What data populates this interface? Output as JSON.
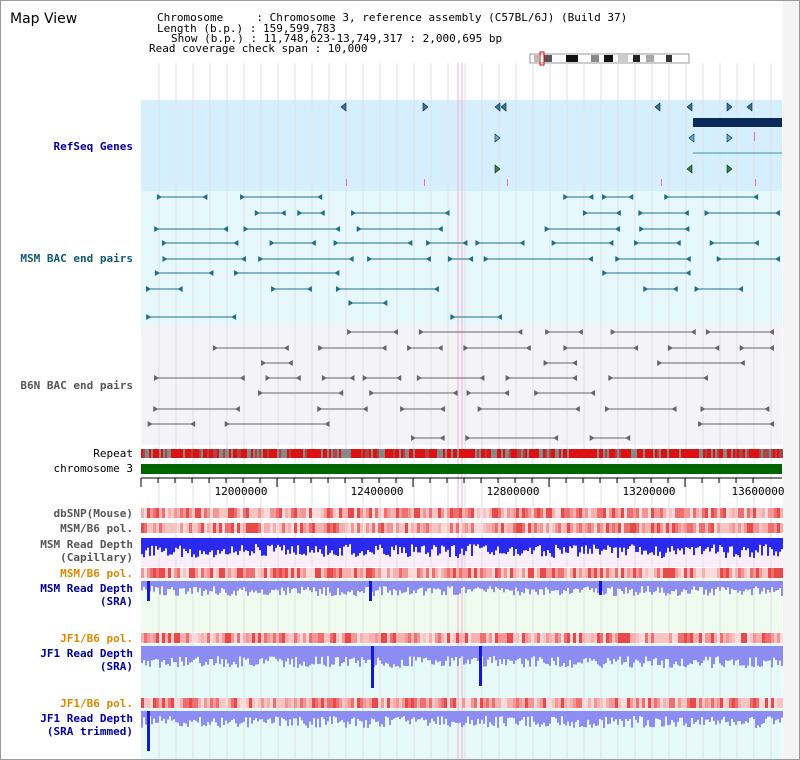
{
  "title": "Map View",
  "header": {
    "chromosome": "Chromosome     : Chromosome 3, reference assembly (C57BL/6J) (Build 37)",
    "length": "Length (b.p.) : 159,599,783",
    "show": "Show (b.p.) : 11,748,623-13,749,317 : 2,000,695 bp",
    "coverage": "Read coverage check span : 10,000"
  },
  "tracks": {
    "refseq": "RefSeq Genes",
    "bac": "MSM BAC end pairs",
    "b6n": "B6N BAC end pairs",
    "repeat": "Repeat",
    "chromosome": "chromosome 3",
    "dbsnp": "dbSNP(Mouse)",
    "msm_pol": "MSM/B6 pol.",
    "msm_depth_cap": "MSM Read Depth\n(Capillary)",
    "msm_pol2": "MSM/B6 pol.",
    "msm_depth_sra": "MSM Read Depth\n(SRA)",
    "jf1_pol": "JF1/B6 pol.",
    "jf1_depth_sra": "JF1 Read Depth\n(SRA)",
    "jf1_pol2": "JF1/B6 pol.",
    "jf1_depth_trim": "JF1 Read Depth\n(SRA trimmed)"
  },
  "axis": {
    "ticks": [
      "12000000",
      "12400000",
      "12800000",
      "13200000",
      "13600000"
    ]
  },
  "colors": {
    "refseq_bg": "#d6efff",
    "bac_bg": "#e6f8fb",
    "b6n_bg": "#f4f4f8",
    "chrom": "#006400",
    "depth_blue": "#2b2bff",
    "depth_light": "#8c8cf2",
    "orange": "#dd8800",
    "navy": "#000099"
  }
}
